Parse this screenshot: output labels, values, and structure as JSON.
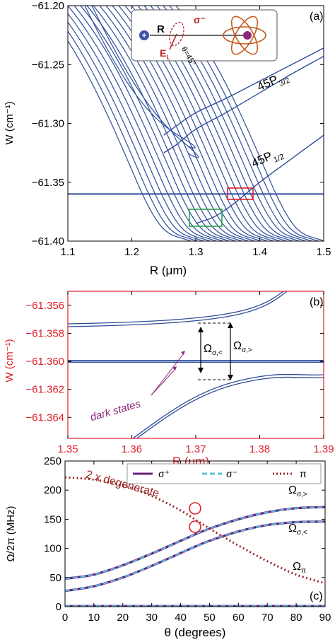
{
  "chart_data": [
    {
      "panel": "(a)",
      "type": "line",
      "xlabel": "R (μm)",
      "ylabel": "W (cm⁻¹)",
      "xlim": [
        1.1,
        1.5
      ],
      "ylim": [
        -61.4,
        -61.2
      ],
      "xticks": [
        "1.1",
        "1.2",
        "1.3",
        "1.4",
        "1.5"
      ],
      "yticks": [
        "−61.20",
        "−61.25",
        "−61.30",
        "−61.35",
        "−61.40"
      ],
      "annotations": {
        "p32_main": "45P",
        "p32_sub": "3/2",
        "p12_main": "45P",
        "p12_sub": "1/2",
        "inset_R": "R",
        "inset_sigma": "σ⁻",
        "inset_EL_main": "E",
        "inset_EL_sub": "L",
        "inset_theta": "θ=45°"
      },
      "series": [
        {
          "values": [
            [
              1.25,
              -61.31
            ],
            [
              1.27,
              -61.302
            ],
            [
              1.3,
              -61.291
            ],
            [
              1.35,
              -61.278
            ],
            [
              1.4,
              -61.264
            ],
            [
              1.45,
              -61.25
            ],
            [
              1.5,
              -61.236
            ]
          ]
        },
        {
          "values": [
            [
              1.25,
              -61.325
            ],
            [
              1.27,
              -61.318
            ],
            [
              1.3,
              -61.305
            ],
            [
              1.35,
              -61.29
            ],
            [
              1.4,
              -61.274
            ],
            [
              1.45,
              -61.258
            ],
            [
              1.5,
              -61.243
            ]
          ]
        },
        {
          "values": [
            [
              1.3,
              -61.385
            ],
            [
              1.33,
              -61.379
            ],
            [
              1.36,
              -61.368
            ],
            [
              1.4,
              -61.35
            ],
            [
              1.45,
              -61.33
            ],
            [
              1.5,
              -61.31
            ]
          ]
        },
        {
          "values": [
            [
              1.1,
              -61.36
            ],
            [
              1.5,
              -61.36
            ]
          ]
        }
      ]
    },
    {
      "panel": "(b)",
      "type": "line",
      "xlabel": "R (μm)",
      "ylabel": "W (cm⁻¹)",
      "xlim": [
        1.35,
        1.39
      ],
      "ylim": [
        -61.3655,
        -61.355
      ],
      "xticks": [
        "1.35",
        "1.36",
        "1.37",
        "1.38",
        "1.39"
      ],
      "yticks": [
        "−61.356",
        "−61.358",
        "−61.360",
        "−61.362",
        "−61.364"
      ],
      "annotations": {
        "dark_states": "dark states",
        "omega_lt": "Ω",
        "omega_lt_sub": "σ,<",
        "omega_gt": "Ω",
        "omega_gt_sub": "σ,>"
      }
    },
    {
      "panel": "(c)",
      "type": "line",
      "xlabel": "θ (degrees)",
      "ylabel": "Ω/2π (MHz)",
      "xlim": [
        0,
        90
      ],
      "ylim": [
        0,
        250
      ],
      "xticks": [
        "0",
        "10",
        "20",
        "30",
        "40",
        "50",
        "60",
        "70",
        "80",
        "90"
      ],
      "yticks": [
        "0",
        "50",
        "100",
        "150",
        "200",
        "250"
      ],
      "legend": [
        "σ⁺",
        "σ⁻",
        "π"
      ],
      "annotations": {
        "degenerate": "2 x degenerate",
        "omega_gt": "Ω",
        "omega_gt_sub": "σ,>",
        "omega_lt": "Ω",
        "omega_lt_sub": "σ,<",
        "omega_pi": "Ω",
        "omega_pi_sub": "π"
      },
      "series": [
        {
          "name": "σ⁺",
          "values": [
            [
              0,
              48
            ],
            [
              10,
              55
            ],
            [
              20,
              71
            ],
            [
              30,
              91
            ],
            [
              40,
              113
            ],
            [
              45,
              124
            ],
            [
              50,
              134
            ],
            [
              60,
              150
            ],
            [
              70,
              162
            ],
            [
              80,
              169
            ],
            [
              90,
              171
            ]
          ]
        },
        {
          "name": "σ⁺",
          "values": [
            [
              0,
              27
            ],
            [
              10,
              35
            ],
            [
              20,
              50
            ],
            [
              30,
              70
            ],
            [
              40,
              92
            ],
            [
              45,
              103
            ],
            [
              50,
              113
            ],
            [
              60,
              129
            ],
            [
              70,
              140
            ],
            [
              80,
              145
            ],
            [
              90,
              146
            ]
          ]
        },
        {
          "name": "π",
          "values": [
            [
              0,
              222
            ],
            [
              10,
              218
            ],
            [
              20,
              208
            ],
            [
              30,
              190
            ],
            [
              40,
              165
            ],
            [
              50,
              134
            ],
            [
              60,
              105
            ],
            [
              70,
              78
            ],
            [
              80,
              55
            ],
            [
              90,
              40
            ]
          ]
        },
        {
          "name": "σ⁺",
          "values": [
            [
              0,
              1
            ],
            [
              90,
              1
            ]
          ]
        }
      ]
    }
  ]
}
